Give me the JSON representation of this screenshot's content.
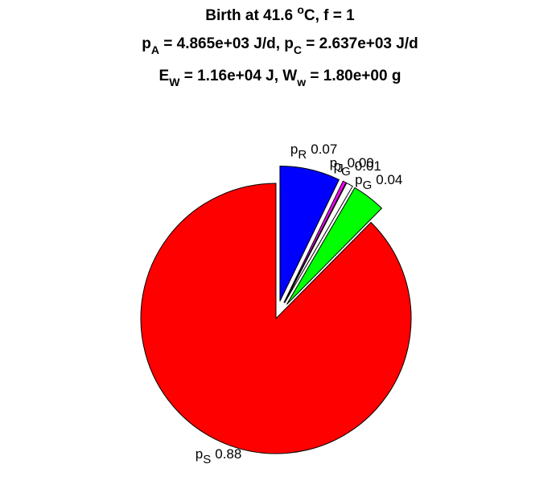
{
  "chart_data": {
    "type": "pie",
    "title": [
      [
        {
          "text": "Birth at 41.6 "
        },
        {
          "sup": "o"
        },
        {
          "text": "C, f = 1"
        }
      ],
      [
        {
          "text": "p"
        },
        {
          "sub": "A"
        },
        {
          "text": " = 4.865e+03 J/d, p"
        },
        {
          "sub": "C"
        },
        {
          "text": " = 2.637e+03 J/d"
        }
      ],
      [
        {
          "text": "E"
        },
        {
          "sub": "W"
        },
        {
          "text": " = 1.16e+04 J, W"
        },
        {
          "sub": "w"
        },
        {
          "text": " = 1.80e+00 g"
        }
      ]
    ],
    "labels": [
      {
        "name": "p",
        "sub": "R"
      },
      {
        "name": "p",
        "sub": "J"
      },
      {
        "name": "p",
        "sub": "G"
      },
      {
        "name": "p",
        "sub": "G"
      },
      {
        "name": "p",
        "sub": "S"
      }
    ],
    "values": [
      0.072,
      0.004,
      0.008,
      0.04,
      0.876
    ],
    "value_labels": [
      "0.07",
      "0.00",
      "0.01",
      "0.04",
      "0.88"
    ],
    "colors": [
      "#0000ff",
      "#ff00ff",
      "#ffffff",
      "#00ff00",
      "#ff0000"
    ],
    "explode": [
      true,
      true,
      true,
      true,
      false
    ]
  }
}
